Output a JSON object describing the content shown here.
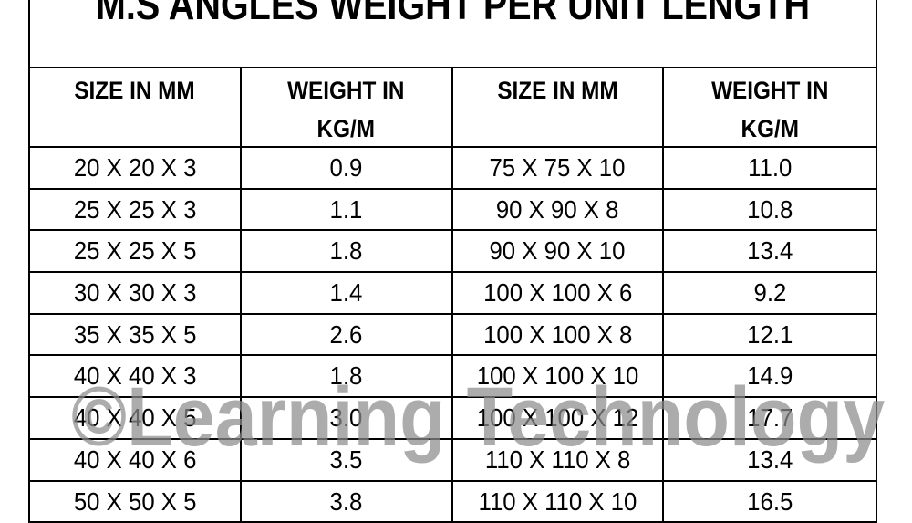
{
  "title": "M.S ANGLES WEIGHT PER UNIT LENGTH",
  "headers": [
    [
      "SIZE IN MM",
      ""
    ],
    [
      "WEIGHT IN",
      "KG/M"
    ],
    [
      "SIZE IN MM",
      ""
    ],
    [
      "WEIGHT IN",
      "KG/M"
    ]
  ],
  "rows": [
    [
      "20 X 20 X 3",
      "0.9",
      "75 X 75 X 10",
      "11.0"
    ],
    [
      "25 X 25 X 3",
      "1.1",
      "90 X 90 X 8",
      "10.8"
    ],
    [
      "25 X 25 X 5",
      "1.8",
      "90 X 90 X 10",
      "13.4"
    ],
    [
      "30 X 30 X 3",
      "1.4",
      "100 X 100 X 6",
      "9.2"
    ],
    [
      "35 X 35 X 5",
      "2.6",
      "100 X 100 X 8",
      "12.1"
    ],
    [
      "40 X 40 X 3",
      "1.8",
      "100 X 100 X 10",
      "14.9"
    ],
    [
      "40 X 40 X 5",
      "3.0",
      "100 X 100 X 12",
      "17.7"
    ],
    [
      "40 X 40 X 6",
      "3.5",
      "110 X 110 X 8",
      "13.4"
    ],
    [
      "50 X 50 X 5",
      "3.8",
      "110 X 110 X 10",
      "16.5"
    ]
  ],
  "watermark": "©Learning Technology"
}
